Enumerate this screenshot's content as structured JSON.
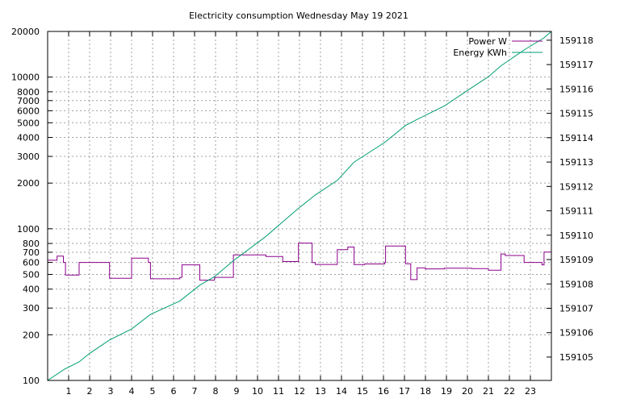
{
  "chart_data": {
    "type": "line",
    "title": "Electricity consumption Wednesday May 19 2021",
    "xlabel": "",
    "ylabel": "",
    "y2label": "",
    "x_range": [
      0,
      24
    ],
    "x_ticks": [
      "1",
      "2",
      "3",
      "4",
      "5",
      "6",
      "7",
      "8",
      "9",
      "10",
      "11",
      "12",
      "13",
      "14",
      "15",
      "16",
      "17",
      "18",
      "19",
      "20",
      "21",
      "22",
      "23"
    ],
    "y_left": {
      "scale": "log",
      "range": [
        100,
        20000
      ],
      "ticks": [
        100,
        200,
        300,
        400,
        500,
        600,
        700,
        800,
        1000,
        2000,
        3000,
        4000,
        5000,
        6000,
        7000,
        8000,
        10000,
        20000
      ]
    },
    "y_right": {
      "scale": "linear",
      "range": [
        159104.04,
        159118.36
      ],
      "ticks": [
        159105,
        159106,
        159107,
        159108,
        159109,
        159110,
        159111,
        159112,
        159113,
        159114,
        159115,
        159116,
        159117,
        159118
      ]
    },
    "grid": true,
    "legend_position": "top-right",
    "series": [
      {
        "name": "Power W",
        "axis": "left",
        "color": "#8b008b",
        "style": "step",
        "points": [
          [
            0.0,
            620
          ],
          [
            0.45,
            660
          ],
          [
            0.75,
            600
          ],
          [
            0.85,
            495
          ],
          [
            1.5,
            600
          ],
          [
            2.95,
            472
          ],
          [
            4.0,
            640
          ],
          [
            4.8,
            600
          ],
          [
            4.9,
            468
          ],
          [
            6.3,
            478
          ],
          [
            6.4,
            578
          ],
          [
            7.25,
            458
          ],
          [
            7.95,
            478
          ],
          [
            8.85,
            672
          ],
          [
            10.4,
            656
          ],
          [
            11.2,
            608
          ],
          [
            11.95,
            805
          ],
          [
            12.6,
            598
          ],
          [
            12.75,
            582
          ],
          [
            13.8,
            728
          ],
          [
            14.3,
            758
          ],
          [
            14.6,
            580
          ],
          [
            15.1,
            586
          ],
          [
            16.05,
            598
          ],
          [
            16.1,
            770
          ],
          [
            17.05,
            588
          ],
          [
            17.3,
            462
          ],
          [
            17.6,
            552
          ],
          [
            18.0,
            544
          ],
          [
            18.9,
            550
          ],
          [
            20.2,
            546
          ],
          [
            21.0,
            533
          ],
          [
            21.6,
            682
          ],
          [
            21.8,
            666
          ],
          [
            22.7,
            600
          ],
          [
            23.55,
            578
          ],
          [
            23.65,
            702
          ],
          [
            24.0,
            702
          ]
        ]
      },
      {
        "name": "Energy KWh",
        "axis": "right",
        "color": "#009e73",
        "style": "line",
        "points": [
          [
            0.0,
            159104.04
          ],
          [
            0.8,
            159104.5
          ],
          [
            1.5,
            159104.8
          ],
          [
            2.0,
            159105.15
          ],
          [
            2.95,
            159105.7
          ],
          [
            4.0,
            159106.15
          ],
          [
            4.9,
            159106.75
          ],
          [
            6.3,
            159107.3
          ],
          [
            7.25,
            159107.95
          ],
          [
            7.95,
            159108.3
          ],
          [
            8.85,
            159108.95
          ],
          [
            10.4,
            159109.95
          ],
          [
            11.2,
            159110.55
          ],
          [
            11.95,
            159111.1
          ],
          [
            12.75,
            159111.65
          ],
          [
            13.8,
            159112.25
          ],
          [
            14.6,
            159113.0
          ],
          [
            16.05,
            159113.8
          ],
          [
            17.05,
            159114.5
          ],
          [
            17.6,
            159114.75
          ],
          [
            18.9,
            159115.3
          ],
          [
            20.2,
            159116.05
          ],
          [
            21.0,
            159116.5
          ],
          [
            21.6,
            159116.95
          ],
          [
            22.7,
            159117.6
          ],
          [
            23.65,
            159118.1
          ],
          [
            24.0,
            159118.36
          ]
        ]
      }
    ]
  }
}
